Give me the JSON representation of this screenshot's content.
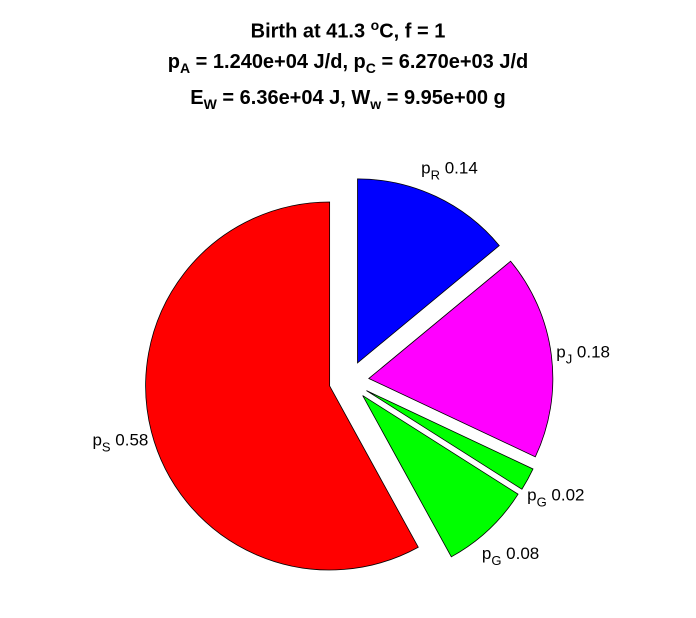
{
  "chart_data": {
    "type": "pie",
    "title_lines": [
      {
        "parts": [
          {
            "t": "Birth at 41.3 "
          },
          {
            "t": "o",
            "s": "sup"
          },
          {
            "t": "C, f = 1"
          }
        ]
      },
      {
        "parts": [
          {
            "t": "p"
          },
          {
            "t": "A",
            "s": "sub"
          },
          {
            "t": " = 1.240e+04 J/d, p"
          },
          {
            "t": "C",
            "s": "sub"
          },
          {
            "t": " = 6.270e+03 J/d"
          }
        ]
      },
      {
        "parts": [
          {
            "t": "E"
          },
          {
            "t": "W",
            "s": "sub"
          },
          {
            "t": " = 6.36e+04 J, W"
          },
          {
            "t": "w",
            "s": "sub"
          },
          {
            "t": " = 9.95e+00 g"
          }
        ]
      }
    ],
    "slices": [
      {
        "symbol": "p",
        "subscript": "R",
        "value": 0.14,
        "value_label": "0.14",
        "color": "#0000ff",
        "exploded": true
      },
      {
        "symbol": "p",
        "subscript": "J",
        "value": 0.18,
        "value_label": "0.18",
        "color": "#ff00ff",
        "exploded": true
      },
      {
        "symbol": "p",
        "subscript": "G",
        "value": 0.02,
        "value_label": "0.02",
        "color": "#00ff00",
        "exploded": true
      },
      {
        "symbol": "p",
        "subscript": "G",
        "value": 0.08,
        "value_label": "0.08",
        "color": "#00ff00",
        "exploded": true
      },
      {
        "symbol": "p",
        "subscript": "S",
        "value": 0.58,
        "value_label": "0.58",
        "color": "#ff0000",
        "exploded": true
      }
    ]
  }
}
